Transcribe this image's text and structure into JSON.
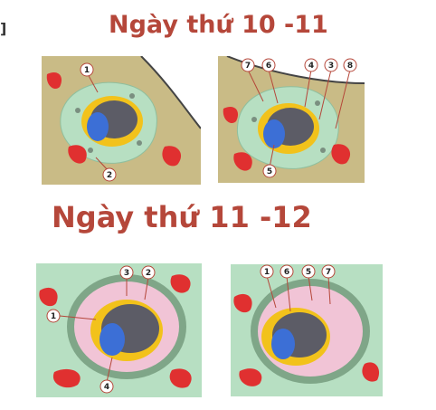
{
  "corner_mark": "]",
  "headings": {
    "day_10_11": "Ngày thứ 10 -11",
    "day_11_12": "Ngày thứ 11 -12"
  },
  "colors": {
    "heading": "#b5473a",
    "endometrium_tan": "#c9bb86",
    "stroma_green": "#b7dfc2",
    "blood_red": "#e03030",
    "trophoblast_yellow": "#f2c21b",
    "embryo_blue": "#3c6fd6",
    "cavity_gray": "#5c5c66"
  },
  "panels": [
    {
      "name": "panel-day10-left",
      "labels": [
        "1",
        "2"
      ]
    },
    {
      "name": "panel-day10-right",
      "labels": [
        "7",
        "6",
        "4",
        "3",
        "8",
        "5"
      ]
    },
    {
      "name": "panel-day11-left",
      "labels": [
        "3",
        "2",
        "1",
        "4"
      ]
    },
    {
      "name": "panel-day11-right",
      "labels": [
        "1",
        "6",
        "5",
        "7"
      ]
    }
  ]
}
